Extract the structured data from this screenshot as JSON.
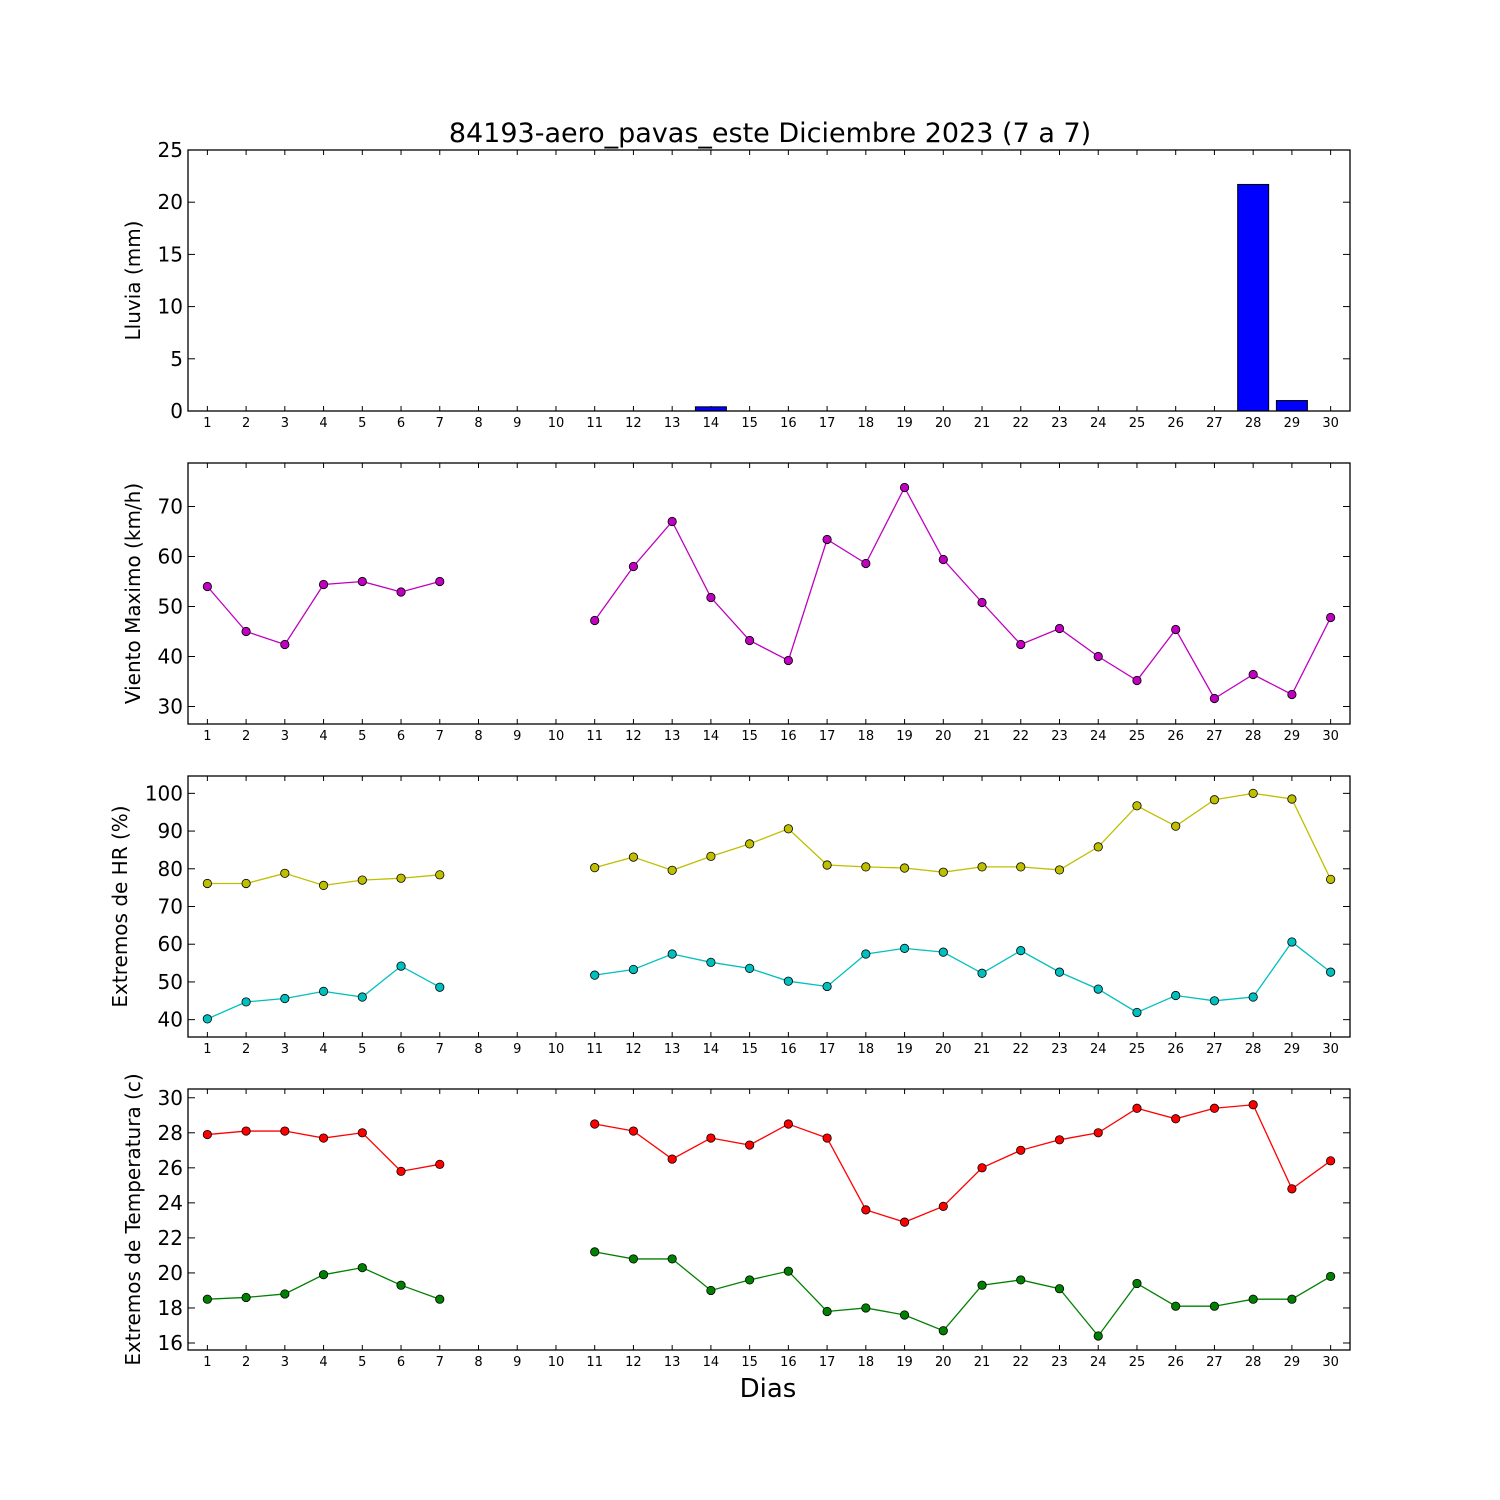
{
  "title": "84193-aero_pavas_este Diciembre 2023  (7 a 7)",
  "xlabel": "Dias",
  "chart_data": [
    {
      "type": "bar",
      "ylabel": "Lluvia (mm)",
      "ylim": [
        0,
        25
      ],
      "yticks": [
        0,
        5,
        10,
        15,
        20,
        25
      ],
      "x": [
        1,
        2,
        3,
        4,
        5,
        6,
        7,
        8,
        9,
        10,
        11,
        12,
        13,
        14,
        15,
        16,
        17,
        18,
        19,
        20,
        21,
        22,
        23,
        24,
        25,
        26,
        27,
        28,
        29,
        30
      ],
      "xlim": [
        0.5,
        30.5
      ],
      "series": [
        {
          "color": "#0000ff",
          "values": [
            0,
            0,
            0,
            0,
            0,
            0,
            0,
            null,
            null,
            null,
            0,
            0,
            0,
            0.4,
            0,
            0,
            0,
            0,
            0,
            0,
            0,
            0,
            0,
            0,
            0,
            0,
            0,
            21.7,
            1.0,
            0
          ]
        }
      ]
    },
    {
      "type": "line",
      "ylabel": "Viento Maximo (km/h)",
      "ylim": [
        26.5,
        78.7
      ],
      "yticks": [
        30,
        40,
        50,
        60,
        70
      ],
      "x": [
        1,
        2,
        3,
        4,
        5,
        6,
        7,
        8,
        9,
        10,
        11,
        12,
        13,
        14,
        15,
        16,
        17,
        18,
        19,
        20,
        21,
        22,
        23,
        24,
        25,
        26,
        27,
        28,
        29,
        30
      ],
      "xlim": [
        0.5,
        30.5
      ],
      "series": [
        {
          "color": "#bf00bf",
          "values": [
            54,
            45,
            42.4,
            54.4,
            55,
            52.9,
            55,
            null,
            null,
            null,
            47.2,
            58,
            67,
            51.8,
            43.2,
            39.2,
            63.4,
            58.6,
            73.8,
            59.4,
            50.8,
            42.4,
            45.6,
            40,
            35.2,
            45.4,
            31.6,
            36.4,
            32.4,
            47.8
          ]
        }
      ]
    },
    {
      "type": "line",
      "ylabel": "Extremos de HR (%)",
      "ylim": [
        35.4,
        104.6
      ],
      "yticks": [
        40,
        50,
        60,
        70,
        80,
        90,
        100
      ],
      "x": [
        1,
        2,
        3,
        4,
        5,
        6,
        7,
        8,
        9,
        10,
        11,
        12,
        13,
        14,
        15,
        16,
        17,
        18,
        19,
        20,
        21,
        22,
        23,
        24,
        25,
        26,
        27,
        28,
        29,
        30
      ],
      "xlim": [
        0.5,
        30.5
      ],
      "series": [
        {
          "color": "#bfbf00",
          "values": [
            76.1,
            76.1,
            78.8,
            75.6,
            77,
            77.5,
            78.4,
            null,
            null,
            null,
            80.3,
            83.1,
            79.6,
            83.3,
            86.6,
            90.6,
            81,
            80.5,
            80.2,
            79.1,
            80.5,
            80.5,
            79.7,
            85.8,
            96.7,
            91.3,
            98.3,
            100,
            98.5,
            77.2
          ]
        },
        {
          "color": "#00bfbf",
          "values": [
            40.2,
            44.7,
            45.6,
            47.5,
            46,
            54.2,
            48.6,
            null,
            null,
            null,
            51.8,
            53.3,
            57.4,
            55.2,
            53.6,
            50.2,
            48.8,
            57.4,
            58.9,
            57.9,
            52.3,
            58.3,
            52.6,
            48.1,
            41.9,
            46.4,
            45,
            46,
            60.6,
            52.6
          ]
        }
      ]
    },
    {
      "type": "line",
      "ylabel": "Extremos de Temperatura (c)",
      "ylim": [
        15.6,
        30.5
      ],
      "yticks": [
        16,
        18,
        20,
        22,
        24,
        26,
        28,
        30
      ],
      "x": [
        1,
        2,
        3,
        4,
        5,
        6,
        7,
        8,
        9,
        10,
        11,
        12,
        13,
        14,
        15,
        16,
        17,
        18,
        19,
        20,
        21,
        22,
        23,
        24,
        25,
        26,
        27,
        28,
        29,
        30
      ],
      "xlim": [
        0.5,
        30.5
      ],
      "series": [
        {
          "color": "#ff0000",
          "values": [
            27.9,
            28.1,
            28.1,
            27.7,
            28,
            25.8,
            26.2,
            null,
            null,
            null,
            28.5,
            28.1,
            26.5,
            27.7,
            27.3,
            28.5,
            27.7,
            23.6,
            22.9,
            23.8,
            26,
            27,
            27.6,
            28,
            29.4,
            28.8,
            29.4,
            29.6,
            24.8,
            26.4
          ]
        },
        {
          "color": "#008000",
          "values": [
            18.5,
            18.6,
            18.8,
            19.9,
            20.3,
            19.3,
            18.5,
            null,
            null,
            null,
            21.2,
            20.8,
            20.8,
            19,
            19.6,
            20.1,
            17.8,
            18,
            17.6,
            16.7,
            19.3,
            19.6,
            19.1,
            16.4,
            19.4,
            18.1,
            18.1,
            18.5,
            18.5,
            19.8
          ]
        }
      ]
    }
  ]
}
